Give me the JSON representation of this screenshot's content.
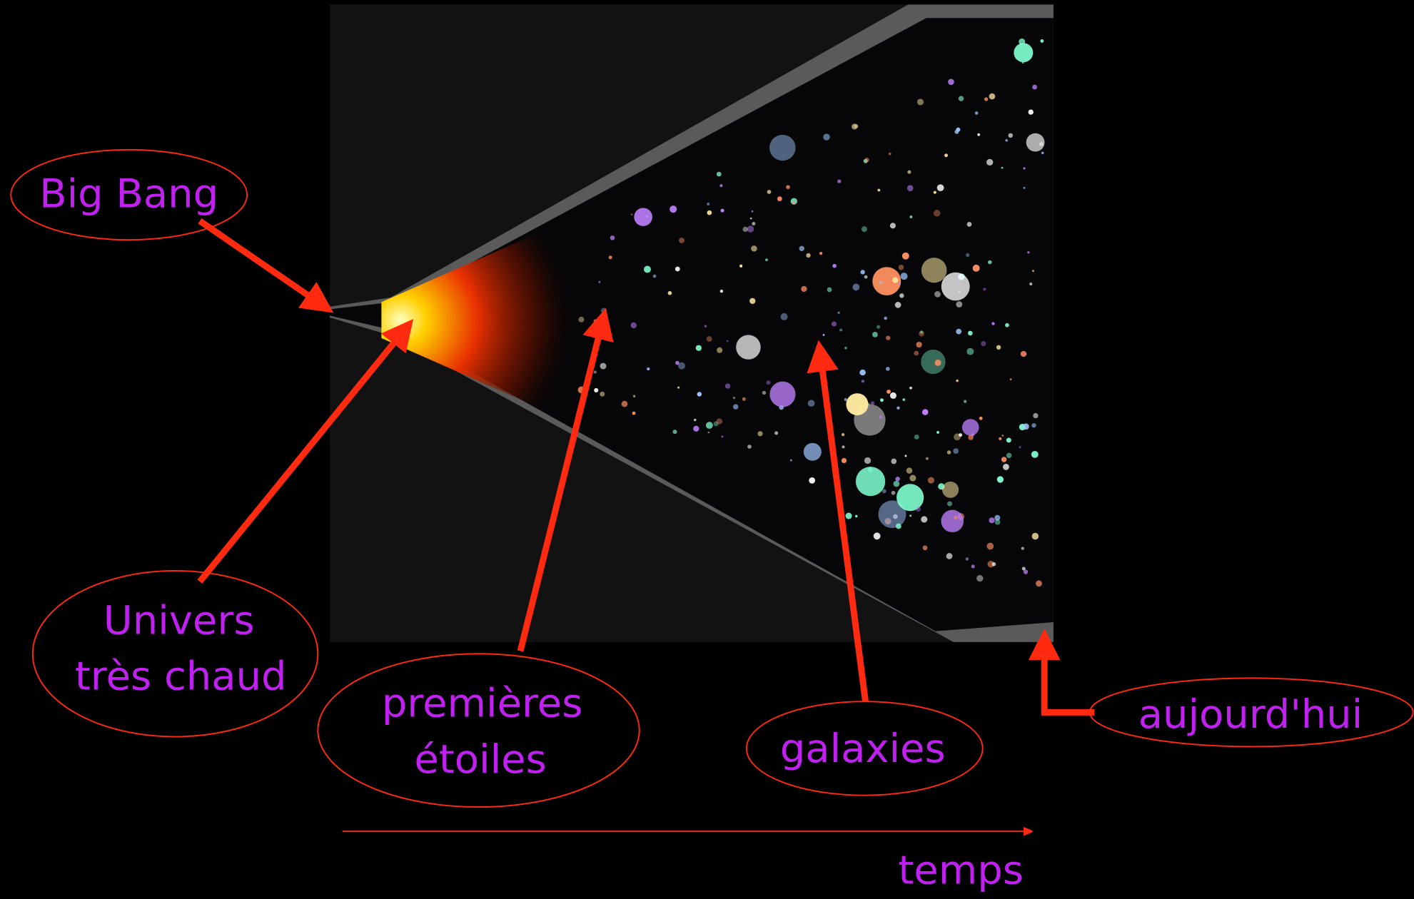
{
  "labels": {
    "big_bang": "Big Bang",
    "hot_universe": [
      "Univers",
      "très chaud"
    ],
    "first_stars": [
      "premières",
      "étoiles"
    ],
    "galaxies": "galaxies",
    "today": "aujourd'hui",
    "time_axis": "temps"
  }
}
